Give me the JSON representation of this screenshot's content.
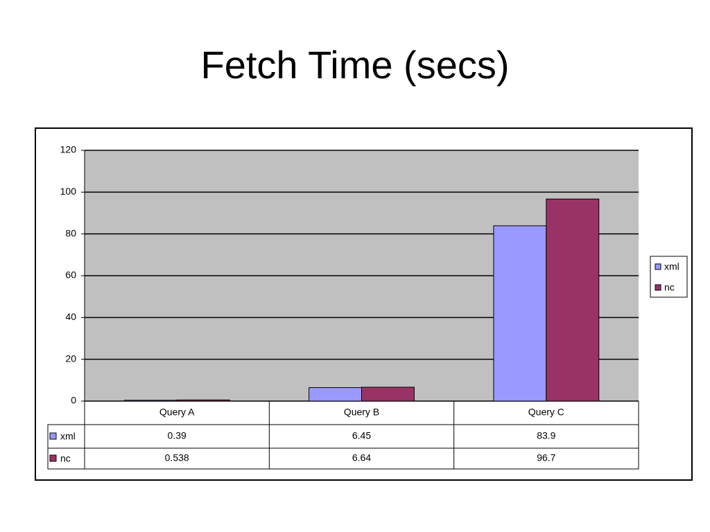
{
  "chart_data": {
    "type": "bar",
    "title": "Fetch Time (secs)",
    "categories": [
      "Query A",
      "Query B",
      "Query C"
    ],
    "series": [
      {
        "name": "xml",
        "color": "#9999ff",
        "values": [
          0.39,
          6.45,
          83.9
        ]
      },
      {
        "name": "nc",
        "color": "#993366",
        "values": [
          0.538,
          6.64,
          96.7
        ]
      }
    ],
    "ylim": [
      0,
      120
    ],
    "yticks": [
      0,
      20,
      40,
      60,
      80,
      100,
      120
    ],
    "grid": true,
    "legend": "right",
    "plot_background": "#c0c0c0"
  }
}
